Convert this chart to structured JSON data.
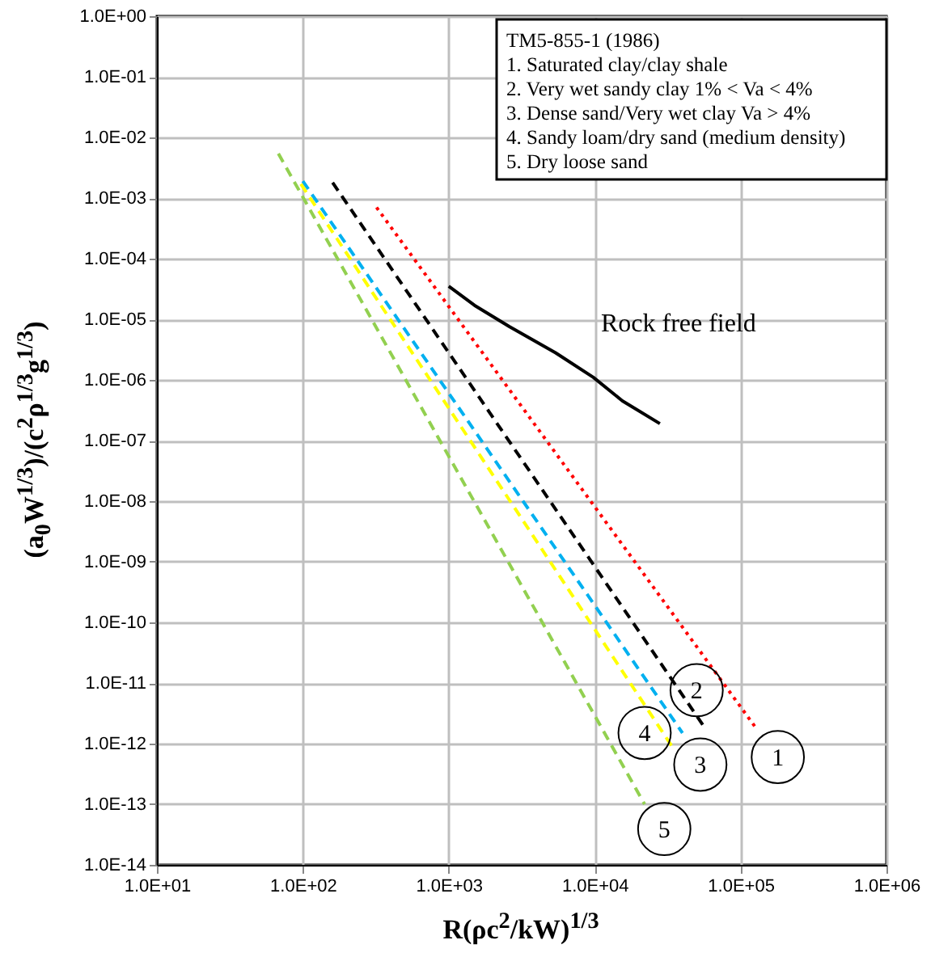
{
  "chart_data": {
    "type": "line",
    "xlabel": "R(ρc$^{2}$/kW)$^{1/3}$",
    "ylabel": "(a$_{0}$W$^{1/3}$)/(c$^{2}$ρ$^{1/3}$g$^{1/3}$)",
    "log": "xy",
    "grid": true,
    "xlim": [
      10,
      1000000
    ],
    "xticks": [
      {
        "value": 10,
        "label": "1.0E+01"
      },
      {
        "value": 100,
        "label": "1.0E+02"
      },
      {
        "value": 1000,
        "label": "1.0E+03"
      },
      {
        "value": 10000,
        "label": "1.0E+04"
      },
      {
        "value": 100000,
        "label": "1.0E+05"
      },
      {
        "value": 1000000,
        "label": "1.0E+06"
      }
    ],
    "ylim": [
      1e-14,
      1
    ],
    "yticks": [
      {
        "value": 1,
        "label": "1.0E+00"
      },
      {
        "value": 0.1,
        "label": "1.0E-01"
      },
      {
        "value": 0.01,
        "label": "1.0E-02"
      },
      {
        "value": 0.001,
        "label": "1.0E-03"
      },
      {
        "value": 0.0001,
        "label": "1.0E-04"
      },
      {
        "value": 1e-05,
        "label": "1.0E-05"
      },
      {
        "value": 1e-06,
        "label": "1.0E-06"
      },
      {
        "value": 1e-07,
        "label": "1.0E-07"
      },
      {
        "value": 1e-08,
        "label": "1.0E-08"
      },
      {
        "value": 1e-09,
        "label": "1.0E-09"
      },
      {
        "value": 1e-10,
        "label": "1.0E-10"
      },
      {
        "value": 1e-11,
        "label": "1.0E-11"
      },
      {
        "value": 1e-12,
        "label": "1.0E-12"
      },
      {
        "value": 1e-13,
        "label": "1.0E-13"
      },
      {
        "value": 1e-14,
        "label": "1.0E-14"
      }
    ],
    "series": [
      {
        "color": "#ff0000",
        "line_style": "dotted",
        "x": [
          320,
          130000
        ],
        "values": [
          0.0007,
          1.7e-12
        ]
      },
      {
        "color": "#000000",
        "line_style": "dashed",
        "x": [
          160,
          58000
        ],
        "values": [
          0.0018,
          1.7e-12
        ]
      },
      {
        "color": "#00b0f0",
        "line_style": "dashed",
        "x": [
          100,
          40000
        ],
        "values": [
          0.0019,
          1.5e-12
        ]
      },
      {
        "color": "#ffff00",
        "line_style": "dashed",
        "x": [
          97,
          35000
        ],
        "values": [
          0.0017,
          8e-13
        ]
      },
      {
        "color": "#92d050",
        "line_style": "dashed",
        "x": [
          68,
          22000
        ],
        "values": [
          0.0054,
          1e-13
        ]
      },
      {
        "name": "Rock free field",
        "color": "#000000",
        "line_style": "solid",
        "x": [
          1000,
          1500,
          2600,
          5400,
          9800,
          15500,
          28000
        ],
        "values": [
          3.5e-05,
          1.7e-05,
          7.6e-06,
          2.8e-06,
          1.1e-06,
          4.5e-07,
          1.9e-07
        ]
      }
    ],
    "annotations": [
      "TM5-855-1 (1986)",
      "1. Saturated clay/clay shale",
      "2. Very wet sandy clay 1% < Va < 4%",
      "3. Dense sand/Very wet clay Va > 4%",
      "4. Sandy loam/dry sand  (medium density)",
      "5. Dry loose sand",
      {
        "text": "1",
        "x": 180000,
        "y": 6e-13
      },
      {
        "text": "2",
        "x": 50000,
        "y": 7.6e-12
      },
      {
        "text": "3",
        "x": 53000,
        "y": 4.5e-13
      },
      {
        "text": "4",
        "x": 22000,
        "y": 1.5e-12
      },
      {
        "text": "5",
        "x": 30000,
        "y": 3.9e-14
      }
    ]
  }
}
